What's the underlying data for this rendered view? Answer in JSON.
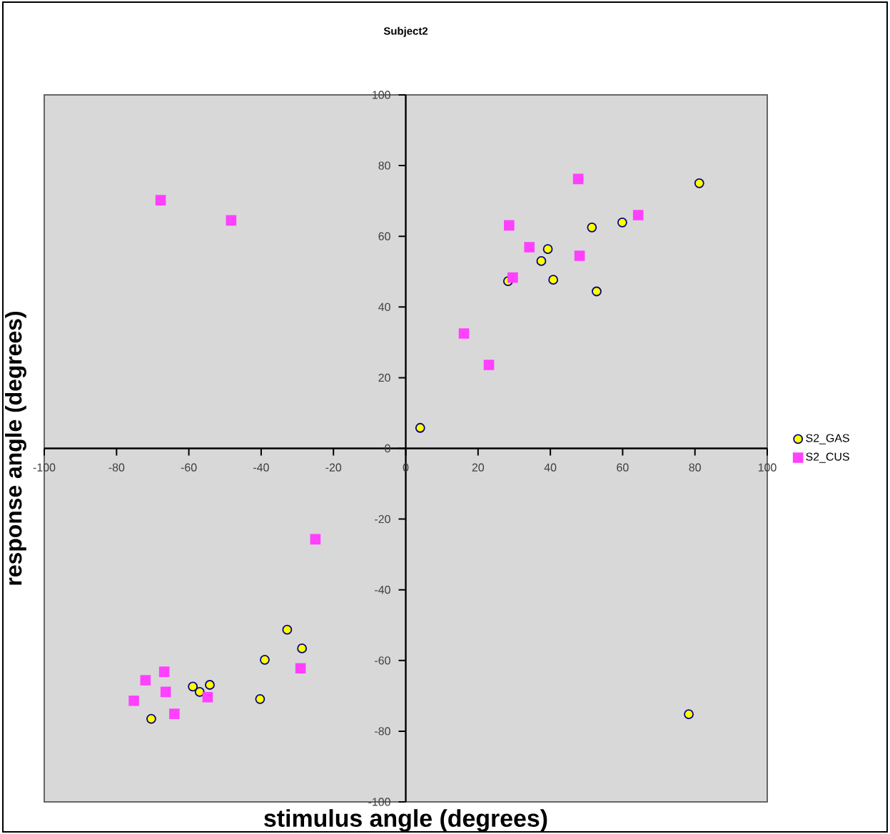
{
  "chart_data": {
    "type": "scatter",
    "title": "Subject2",
    "xlabel": "stimulus angle (degrees)",
    "ylabel": "response angle (degrees)",
    "xlim": [
      -100,
      100
    ],
    "ylim": [
      -100,
      100
    ],
    "xticks": [
      -100,
      -80,
      -60,
      -40,
      -20,
      0,
      20,
      40,
      60,
      80,
      100
    ],
    "yticks": [
      -100,
      -80,
      -60,
      -40,
      -20,
      0,
      20,
      40,
      60,
      80,
      100
    ],
    "grid": false,
    "legend": "right",
    "series": [
      {
        "name": "S2_GAS",
        "color": "#ffff00",
        "marker": "circle",
        "x": [
          81.2,
          51.5,
          59.9,
          39.3,
          37.5,
          28.3,
          40.8,
          52.8,
          4.0,
          78.3,
          -32.8,
          -28.7,
          -39.0,
          -40.3,
          -58.9,
          -57.0,
          -54.2,
          -70.4
        ],
        "values": [
          75.0,
          62.5,
          63.9,
          56.4,
          53.0,
          47.3,
          47.7,
          44.4,
          5.8,
          -75.2,
          -51.3,
          -56.6,
          -59.8,
          -70.9,
          -67.4,
          -68.9,
          -66.9,
          -76.5
        ]
      },
      {
        "name": "S2_CUS",
        "color": "#ff40ff",
        "marker": "square",
        "x": [
          47.7,
          64.3,
          28.6,
          34.2,
          48.1,
          29.6,
          16.1,
          23.0,
          -67.8,
          -48.3,
          -25.0,
          -29.1,
          -66.8,
          -72.0,
          -66.4,
          -75.2,
          -64.0,
          -54.8
        ],
        "values": [
          76.2,
          66.0,
          63.1,
          56.9,
          54.5,
          48.3,
          32.5,
          23.6,
          70.2,
          64.5,
          -25.7,
          -62.2,
          -63.2,
          -65.6,
          -68.9,
          -71.4,
          -75.1,
          -70.4
        ]
      }
    ]
  }
}
